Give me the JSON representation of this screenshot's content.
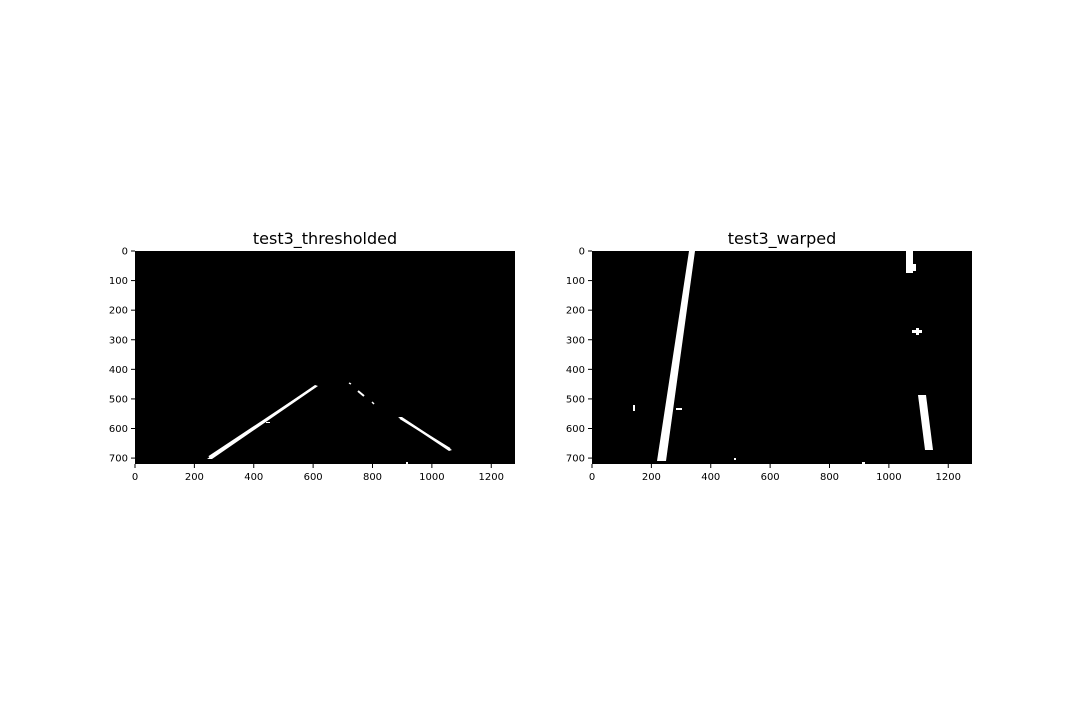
{
  "figure": {
    "background": "#ffffff",
    "image_background": "#000000",
    "foreground": "#ffffff"
  },
  "panels": [
    {
      "title": "test3_thresholded",
      "image_width": 1280,
      "image_height": 720,
      "x_ticks": [
        0,
        200,
        400,
        600,
        800,
        1000,
        1200
      ],
      "y_ticks": [
        0,
        100,
        200,
        300,
        400,
        500,
        600,
        700
      ],
      "content": "binary threshold of road image: two white lane-line streaks converging toward the horizon"
    },
    {
      "title": "test3_warped",
      "image_width": 1280,
      "image_height": 720,
      "x_ticks": [
        0,
        200,
        400,
        600,
        800,
        1000,
        1200
      ],
      "y_ticks": [
        0,
        100,
        200,
        300,
        400,
        500,
        600,
        700
      ],
      "content": "bird's-eye warped binary image: two near-vertical white lane lines"
    }
  ]
}
